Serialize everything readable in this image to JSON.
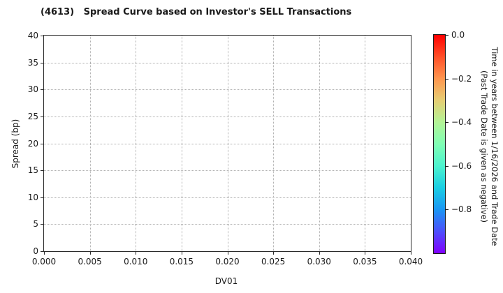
{
  "chart_data": {
    "type": "scatter",
    "title": "(4613)   Spread Curve based on Investor's SELL Transactions",
    "xlabel": "DV01",
    "ylabel": "Spread (bp)",
    "xlim": [
      0.0,
      0.04
    ],
    "ylim": [
      0,
      40
    ],
    "xtick_labels": [
      "0.000",
      "0.005",
      "0.010",
      "0.015",
      "0.020",
      "0.025",
      "0.030",
      "0.035",
      "0.040"
    ],
    "ytick_labels": [
      "0",
      "5",
      "10",
      "15",
      "20",
      "25",
      "30",
      "35",
      "40"
    ],
    "grid": true,
    "grid_linestyle": "dotted",
    "legend": "none",
    "points": [],
    "colorbar": {
      "label_line1": "Time in years between 1/16/2026 and Trade Date",
      "label_line2": "(Past Trade Date is given as negative)",
      "vmin": -1.0,
      "vmax": 0.0,
      "tick_labels": [
        "0.0",
        "−0.2",
        "−0.4",
        "−0.6",
        "−0.8"
      ],
      "tick_values": [
        0.0,
        -0.2,
        -0.4,
        -0.6,
        -0.8
      ],
      "colormap": "rainbow",
      "gradient_stops": [
        {
          "pos": 0,
          "color": "#ff0000"
        },
        {
          "pos": 10,
          "color": "#ff4f28"
        },
        {
          "pos": 20,
          "color": "#ff964f"
        },
        {
          "pos": 30,
          "color": "#e6ce74"
        },
        {
          "pos": 40,
          "color": "#b3f396"
        },
        {
          "pos": 50,
          "color": "#80ffb4"
        },
        {
          "pos": 60,
          "color": "#4df3ce"
        },
        {
          "pos": 70,
          "color": "#1acee3"
        },
        {
          "pos": 80,
          "color": "#1a96f3"
        },
        {
          "pos": 90,
          "color": "#4d4ffc"
        },
        {
          "pos": 100,
          "color": "#8000ff"
        }
      ]
    }
  },
  "colors": {
    "text": "#1a1a1a",
    "spine": "#2a2a2a",
    "grid": "#b0b0b0",
    "background": "#ffffff"
  }
}
